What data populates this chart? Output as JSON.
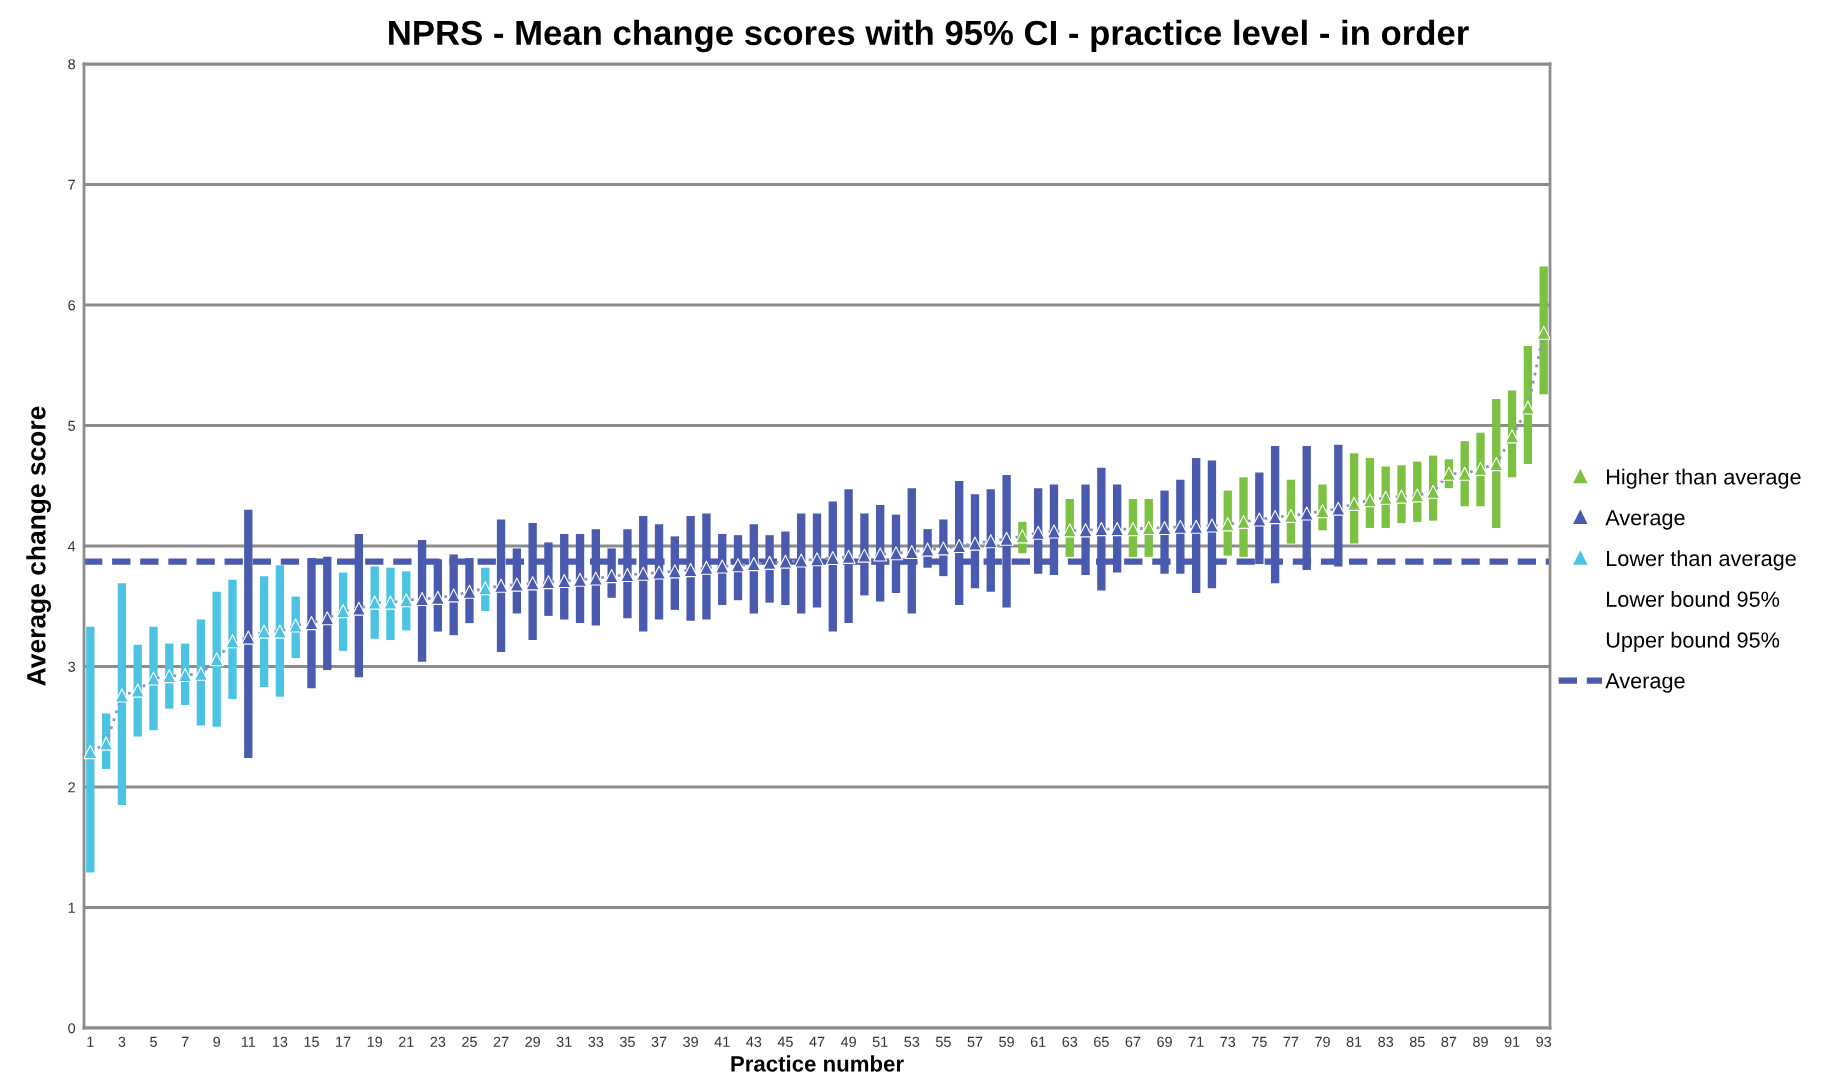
{
  "chart_data": {
    "type": "scatter",
    "title": "NPRS - Mean change scores with 95% CI - practice level - in order",
    "xlabel": "Practice number",
    "ylabel": "Average change score",
    "xlim": [
      0.6,
      93.4
    ],
    "xticks": [
      1,
      3,
      5,
      7,
      9,
      11,
      13,
      15,
      17,
      19,
      21,
      23,
      25,
      27,
      29,
      31,
      33,
      35,
      37,
      39,
      41,
      43,
      45,
      47,
      49,
      51,
      53,
      55,
      57,
      59,
      61,
      63,
      65,
      67,
      69,
      71,
      73,
      75,
      77,
      79,
      81,
      83,
      85,
      87,
      89,
      91,
      93
    ],
    "ylim": [
      0,
      8
    ],
    "yticks": [
      0,
      1,
      2,
      3,
      4,
      5,
      6,
      7,
      8
    ],
    "grid": "y",
    "legend": "right",
    "marker": "triangle",
    "series": [
      {
        "type": "line",
        "line_style": "dotted",
        "marker": "none",
        "color": "#8a96c4",
        "x": [
          1,
          2,
          3,
          4,
          5,
          6,
          7,
          8,
          9,
          10,
          11,
          12,
          13,
          14,
          15,
          16,
          17,
          18,
          19,
          20,
          21,
          22,
          23,
          24,
          25,
          26,
          27,
          28,
          29,
          30,
          31,
          32,
          33,
          34,
          35,
          36,
          37,
          38,
          39,
          40,
          41,
          42,
          43,
          44,
          45,
          46,
          47,
          48,
          49,
          50,
          51,
          52,
          53,
          54,
          55,
          56,
          57,
          58,
          59,
          60,
          61,
          62,
          63,
          64,
          65,
          66,
          67,
          68,
          69,
          70,
          71,
          72,
          73,
          74,
          75,
          76,
          77,
          78,
          79,
          80,
          81,
          82,
          83,
          84,
          85,
          86,
          87,
          88,
          89,
          90,
          91,
          92,
          93
        ],
        "values": [
          2.29,
          2.36,
          2.76,
          2.8,
          2.9,
          2.92,
          2.93,
          2.94,
          3.06,
          3.21,
          3.24,
          3.29,
          3.29,
          3.34,
          3.36,
          3.4,
          3.46,
          3.48,
          3.53,
          3.53,
          3.55,
          3.56,
          3.57,
          3.59,
          3.62,
          3.65,
          3.67,
          3.68,
          3.69,
          3.7,
          3.71,
          3.72,
          3.73,
          3.75,
          3.76,
          3.77,
          3.78,
          3.79,
          3.8,
          3.82,
          3.83,
          3.84,
          3.85,
          3.86,
          3.87,
          3.88,
          3.89,
          3.9,
          3.91,
          3.92,
          3.93,
          3.94,
          3.95,
          3.97,
          3.98,
          4.0,
          4.02,
          4.04,
          4.06,
          4.08,
          4.11,
          4.12,
          4.13,
          4.13,
          4.14,
          4.14,
          4.14,
          4.15,
          4.15,
          4.16,
          4.16,
          4.17,
          4.18,
          4.2,
          4.22,
          4.24,
          4.25,
          4.27,
          4.29,
          4.31,
          4.35,
          4.38,
          4.4,
          4.41,
          4.42,
          4.45,
          4.6,
          4.6,
          4.64,
          4.68,
          4.91,
          5.15,
          5.77
        ]
      },
      {
        "name": "Higher than average",
        "color": "#7cc142",
        "x": [
          60,
          63,
          67,
          68,
          73,
          74,
          77,
          79,
          81,
          82,
          83,
          84,
          85,
          86,
          87,
          88,
          89,
          90,
          91,
          92,
          93
        ],
        "values": [
          4.08,
          4.13,
          4.14,
          4.15,
          4.18,
          4.2,
          4.25,
          4.29,
          4.35,
          4.38,
          4.4,
          4.41,
          4.42,
          4.45,
          4.6,
          4.6,
          4.64,
          4.68,
          4.91,
          5.15,
          5.77
        ],
        "errors": [
          [
            3.94,
            4.2
          ],
          [
            3.91,
            4.39
          ],
          [
            3.91,
            4.39
          ],
          [
            3.91,
            4.39
          ],
          [
            3.92,
            4.46
          ],
          [
            3.91,
            4.57
          ],
          [
            4.02,
            4.55
          ],
          [
            4.13,
            4.51
          ],
          [
            4.02,
            4.77
          ],
          [
            4.15,
            4.73
          ],
          [
            4.15,
            4.66
          ],
          [
            4.19,
            4.67
          ],
          [
            4.2,
            4.7
          ],
          [
            4.21,
            4.75
          ],
          [
            4.48,
            4.72
          ],
          [
            4.33,
            4.87
          ],
          [
            4.33,
            4.94
          ],
          [
            4.15,
            5.22
          ],
          [
            4.57,
            5.29
          ],
          [
            4.68,
            5.66
          ],
          [
            5.26,
            6.32
          ]
        ]
      },
      {
        "name": "Average",
        "color": "#4a5aae",
        "x": [
          11,
          15,
          16,
          18,
          22,
          23,
          24,
          25,
          27,
          28,
          29,
          30,
          31,
          32,
          33,
          34,
          35,
          36,
          37,
          38,
          39,
          40,
          41,
          42,
          43,
          44,
          45,
          46,
          47,
          48,
          49,
          50,
          51,
          52,
          53,
          54,
          55,
          56,
          57,
          58,
          59,
          61,
          62,
          64,
          65,
          66,
          69,
          70,
          71,
          72,
          75,
          76,
          78,
          80
        ],
        "values": [
          3.24,
          3.36,
          3.4,
          3.48,
          3.56,
          3.57,
          3.59,
          3.62,
          3.67,
          3.68,
          3.69,
          3.7,
          3.71,
          3.72,
          3.73,
          3.75,
          3.76,
          3.77,
          3.78,
          3.79,
          3.8,
          3.82,
          3.83,
          3.84,
          3.85,
          3.86,
          3.87,
          3.88,
          3.89,
          3.9,
          3.91,
          3.92,
          3.93,
          3.94,
          3.95,
          3.97,
          3.98,
          4.0,
          4.02,
          4.04,
          4.06,
          4.11,
          4.12,
          4.13,
          4.14,
          4.14,
          4.15,
          4.16,
          4.16,
          4.17,
          4.22,
          4.24,
          4.27,
          4.31
        ],
        "errors": [
          [
            2.24,
            4.3
          ],
          [
            2.82,
            3.9
          ],
          [
            2.97,
            3.91
          ],
          [
            2.91,
            4.1
          ],
          [
            3.04,
            4.05
          ],
          [
            3.29,
            3.89
          ],
          [
            3.26,
            3.93
          ],
          [
            3.36,
            3.9
          ],
          [
            3.12,
            4.22
          ],
          [
            3.44,
            3.98
          ],
          [
            3.22,
            4.19
          ],
          [
            3.42,
            4.03
          ],
          [
            3.39,
            4.1
          ],
          [
            3.36,
            4.1
          ],
          [
            3.34,
            4.14
          ],
          [
            3.57,
            3.98
          ],
          [
            3.4,
            4.14
          ],
          [
            3.29,
            4.25
          ],
          [
            3.39,
            4.18
          ],
          [
            3.47,
            4.08
          ],
          [
            3.38,
            4.25
          ],
          [
            3.39,
            4.27
          ],
          [
            3.51,
            4.1
          ],
          [
            3.55,
            4.09
          ],
          [
            3.44,
            4.18
          ],
          [
            3.53,
            4.09
          ],
          [
            3.51,
            4.12
          ],
          [
            3.44,
            4.27
          ],
          [
            3.49,
            4.27
          ],
          [
            3.29,
            4.37
          ],
          [
            3.36,
            4.47
          ],
          [
            3.59,
            4.27
          ],
          [
            3.54,
            4.34
          ],
          [
            3.61,
            4.26
          ],
          [
            3.44,
            4.48
          ],
          [
            3.82,
            4.14
          ],
          [
            3.75,
            4.22
          ],
          [
            3.51,
            4.54
          ],
          [
            3.65,
            4.43
          ],
          [
            3.62,
            4.47
          ],
          [
            3.49,
            4.59
          ],
          [
            3.77,
            4.48
          ],
          [
            3.76,
            4.51
          ],
          [
            3.76,
            4.51
          ],
          [
            3.63,
            4.65
          ],
          [
            3.78,
            4.51
          ],
          [
            3.77,
            4.46
          ],
          [
            3.77,
            4.55
          ],
          [
            3.61,
            4.73
          ],
          [
            3.65,
            4.71
          ],
          [
            3.85,
            4.61
          ],
          [
            3.69,
            4.83
          ],
          [
            3.8,
            4.83
          ],
          [
            3.83,
            4.84
          ]
        ]
      },
      {
        "name": "Lower than average",
        "color": "#4cc3e3",
        "x": [
          1,
          2,
          3,
          4,
          5,
          6,
          7,
          8,
          9,
          10,
          12,
          13,
          14,
          17,
          19,
          20,
          21,
          26
        ],
        "values": [
          2.29,
          2.36,
          2.76,
          2.8,
          2.9,
          2.92,
          2.93,
          2.94,
          3.06,
          3.21,
          3.29,
          3.29,
          3.34,
          3.46,
          3.53,
          3.53,
          3.55,
          3.65
        ],
        "errors": [
          [
            1.29,
            3.33
          ],
          [
            2.15,
            2.61
          ],
          [
            1.85,
            3.69
          ],
          [
            2.42,
            3.18
          ],
          [
            2.47,
            3.33
          ],
          [
            2.65,
            3.19
          ],
          [
            2.68,
            3.19
          ],
          [
            2.51,
            3.39
          ],
          [
            2.5,
            3.62
          ],
          [
            2.73,
            3.72
          ],
          [
            2.83,
            3.75
          ],
          [
            2.75,
            3.84
          ],
          [
            3.07,
            3.58
          ],
          [
            3.13,
            3.78
          ],
          [
            3.23,
            3.83
          ],
          [
            3.22,
            3.82
          ],
          [
            3.3,
            3.79
          ],
          [
            3.46,
            3.82
          ]
        ]
      },
      {
        "name": "Lower bound 95%",
        "type": "line"
      },
      {
        "name": "Upper bound 95%",
        "type": "line"
      }
    ],
    "ref_lines": [
      {
        "axis": "y",
        "value": 3.87,
        "label": "Average",
        "color": "#4a5aae",
        "line_style": "dashed"
      }
    ]
  }
}
